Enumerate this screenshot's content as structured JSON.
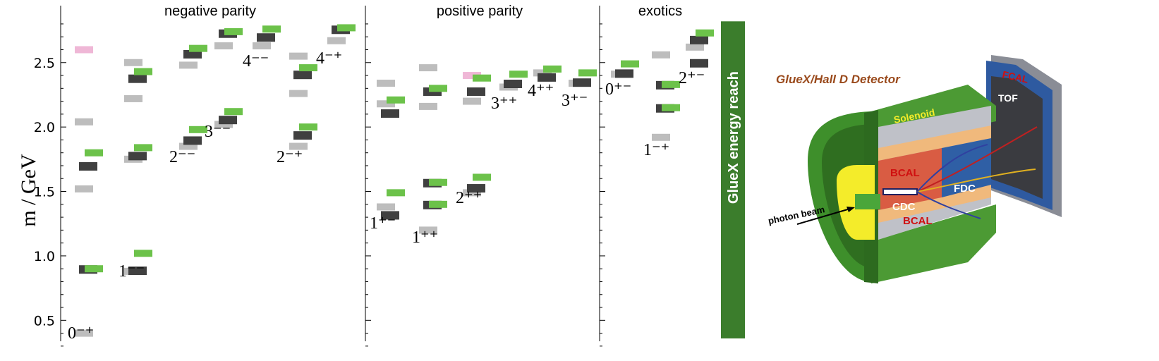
{
  "chart_data": {
    "type": "bar",
    "ylabel": "m / GeV",
    "ylim": [
      0.25,
      2.92
    ],
    "yticks": [
      0.5,
      1.0,
      1.5,
      2.0,
      2.5
    ],
    "ytick_labels": [
      "0.5",
      "1.0",
      "1.5",
      "2.0",
      "2.5"
    ],
    "grid": false,
    "legend": "none",
    "panels": [
      {
        "title": "negative parity",
        "columns": [
          {
            "label": "0⁻⁺",
            "lattice": [
              0.9,
              1.7
            ],
            "experiment": [
              0.9,
              1.8
            ],
            "light": [
              0.4,
              1.52,
              2.04,
              2.6
            ],
            "pink": [
              2.6
            ]
          },
          {
            "label": "1⁻⁻",
            "lattice": [
              0.89,
              1.78,
              2.38
            ],
            "experiment": [
              1.02,
              1.84,
              2.43
            ],
            "light": [
              0.88,
              1.75,
              2.22,
              2.5
            ],
            "pink": []
          },
          {
            "label": "2⁻⁻",
            "lattice": [
              1.9,
              2.57
            ],
            "experiment": [
              1.98,
              2.61
            ],
            "light": [
              1.85,
              2.48
            ],
            "pink": []
          },
          {
            "label": "3⁻⁻",
            "lattice": [
              2.06,
              2.73
            ],
            "experiment": [
              2.12,
              2.74
            ],
            "light": [
              2.02,
              2.63
            ],
            "pink": []
          },
          {
            "label": "4⁻⁻",
            "lattice": [
              2.7
            ],
            "experiment": [
              2.76
            ],
            "light": [
              2.63
            ],
            "pink": []
          },
          {
            "label": "2⁻⁺",
            "lattice": [
              1.94,
              2.41
            ],
            "experiment": [
              2.0,
              2.46
            ],
            "light": [
              1.85,
              2.26,
              2.55
            ],
            "pink": []
          },
          {
            "label": "4⁻⁺",
            "lattice": [
              2.76
            ],
            "experiment": [
              2.77
            ],
            "light": [
              2.67
            ],
            "pink": []
          }
        ]
      },
      {
        "title": "positive parity",
        "columns": [
          {
            "label": "1⁺⁻",
            "lattice": [
              1.32,
              2.11
            ],
            "experiment": [
              1.49,
              2.21
            ],
            "light": [
              1.38,
              2.18,
              2.34
            ],
            "pink": []
          },
          {
            "label": "1⁺⁺",
            "lattice": [
              1.4,
              1.57,
              2.28
            ],
            "experiment": [
              1.4,
              1.57,
              2.3
            ],
            "light": [
              1.2,
              2.16,
              2.46
            ],
            "pink": []
          },
          {
            "label": "2⁺⁺",
            "lattice": [
              1.53,
              2.28
            ],
            "experiment": [
              1.61,
              2.38
            ],
            "light": [
              1.49,
              2.2,
              2.4
            ],
            "pink": [
              2.4
            ]
          },
          {
            "label": "3⁺⁺",
            "lattice": [
              2.34
            ],
            "experiment": [
              2.41
            ],
            "light": [
              2.31
            ],
            "pink": []
          },
          {
            "label": "4⁺⁺",
            "lattice": [
              2.39
            ],
            "experiment": [
              2.45
            ],
            "light": [
              2.42
            ],
            "pink": []
          },
          {
            "label": "3⁺⁻",
            "lattice": [
              2.35
            ],
            "experiment": [
              2.42
            ],
            "light": [
              2.34
            ],
            "pink": []
          }
        ]
      },
      {
        "title": "exotics",
        "columns": [
          {
            "label": "0⁺⁻",
            "lattice": [
              2.42
            ],
            "experiment": [
              2.49
            ],
            "light": [
              2.41
            ],
            "pink": []
          },
          {
            "label": "1⁻⁺",
            "lattice": [
              2.15,
              2.33
            ],
            "experiment": [
              2.15,
              2.33
            ],
            "light": [
              1.92,
              2.56
            ],
            "pink": []
          },
          {
            "label": "2⁺⁻",
            "lattice": [
              2.5,
              2.68
            ],
            "experiment": [
              2.73
            ],
            "light": [
              2.62
            ],
            "pink": []
          }
        ]
      }
    ],
    "reach_label": "GlueX energy reach",
    "reach_range": [
      0.25,
      2.82
    ],
    "colors": {
      "lattice": "#404040",
      "experiment": "#6cc24a",
      "light": "#bdbdbd",
      "pink": "#efb7d6",
      "reach": "#3b7d2c"
    }
  },
  "detector": {
    "title": "GlueX/Hall D Detector",
    "labels": {
      "solenoid": "Solenoid",
      "bcal_top": "BCAL",
      "bcal_bottom": "BCAL",
      "cdc": "CDC",
      "fdc": "FDC",
      "fcal": "FCAL",
      "tof": "TOF",
      "beam": "photon beam"
    },
    "icon": "detector-cutaway-illustration"
  }
}
